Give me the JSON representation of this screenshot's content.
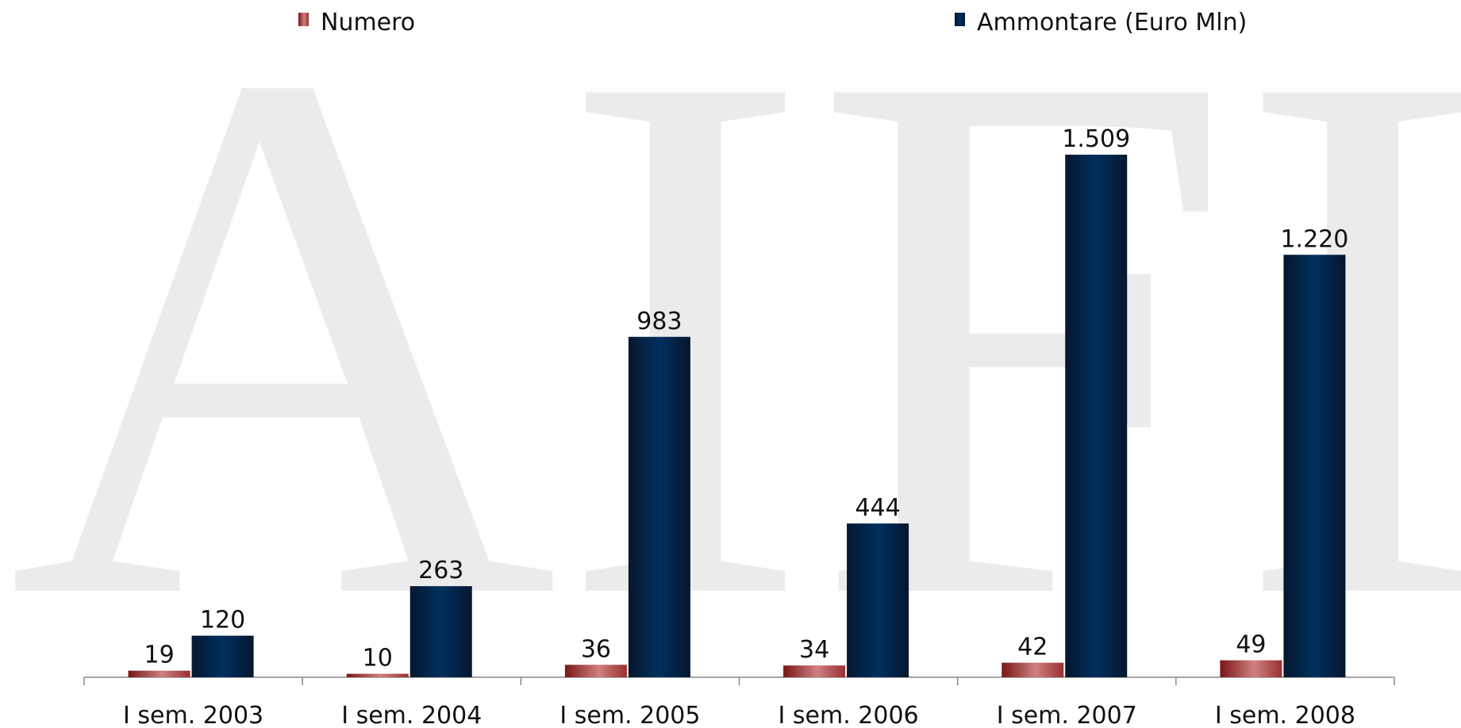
{
  "watermark": "AIFI",
  "chart_data": {
    "type": "bar",
    "categories": [
      "I sem. 2003",
      "I sem. 2004",
      "I sem. 2005",
      "I sem. 2006",
      "I sem. 2007",
      "I sem. 2008"
    ],
    "series": [
      {
        "name": "Numero",
        "color": "#a33a3a",
        "values": [
          19,
          10,
          36,
          34,
          42,
          49
        ]
      },
      {
        "name": "Ammontare (Euro Mln)",
        "color": "#0b2a57",
        "values": [
          120,
          263,
          983,
          444,
          1509,
          1220
        ],
        "value_labels": [
          "120",
          "263",
          "983",
          "444",
          "1.509",
          "1.220"
        ]
      }
    ],
    "ylim": [
      0,
      1800
    ]
  }
}
